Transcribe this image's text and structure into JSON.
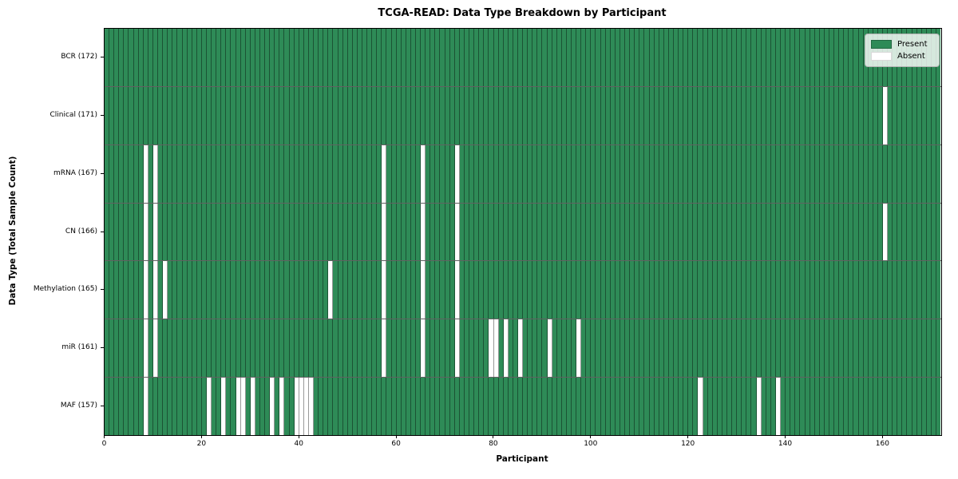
{
  "title": "TCGA-READ: Data Type Breakdown by Participant",
  "xlabel": "Participant",
  "ylabel": "Data Type (Total Sample Count)",
  "legend": {
    "present_label": "Present",
    "absent_label": "Absent",
    "position": "upper right"
  },
  "colors": {
    "present": "#2e8b57",
    "absent": "#ffffff",
    "cell_border": "rgba(0,0,0,0.40)",
    "row_separator": "rgba(0,0,0,0.62)",
    "spine": "#000000",
    "legend_background": "rgba(255,255,255,0.8)"
  },
  "chart_data": {
    "type": "heatmap",
    "x_axis": {
      "label": "Participant",
      "range": [
        0,
        172
      ],
      "ticks": [
        0,
        20,
        40,
        60,
        80,
        100,
        120,
        140,
        160
      ]
    },
    "n_participants": 172,
    "grid": "cell-borders",
    "legend_entries": [
      "Present",
      "Absent"
    ],
    "rows": [
      {
        "label": "BCR (172)",
        "data_type": "BCR",
        "total_sample_count": 172,
        "absent_participants": []
      },
      {
        "label": "Clinical (171)",
        "data_type": "Clinical",
        "total_sample_count": 171,
        "absent_participants": [
          160
        ]
      },
      {
        "label": "mRNA (167)",
        "data_type": "mRNA",
        "total_sample_count": 167,
        "absent_participants": [
          8,
          10,
          57,
          65,
          72
        ]
      },
      {
        "label": "CN (166)",
        "data_type": "CN",
        "total_sample_count": 166,
        "absent_participants": [
          8,
          10,
          57,
          65,
          72,
          160
        ]
      },
      {
        "label": "Methylation (165)",
        "data_type": "Methylation",
        "total_sample_count": 165,
        "absent_participants": [
          8,
          10,
          12,
          46,
          57,
          65,
          72
        ]
      },
      {
        "label": "miR (161)",
        "data_type": "miR",
        "total_sample_count": 161,
        "absent_participants": [
          8,
          10,
          57,
          65,
          72,
          79,
          80,
          82,
          85,
          91,
          97
        ]
      },
      {
        "label": "MAF (157)",
        "data_type": "MAF",
        "total_sample_count": 157,
        "absent_participants": [
          8,
          21,
          24,
          27,
          28,
          30,
          34,
          36,
          39,
          40,
          41,
          42,
          122,
          134,
          138
        ]
      }
    ]
  }
}
